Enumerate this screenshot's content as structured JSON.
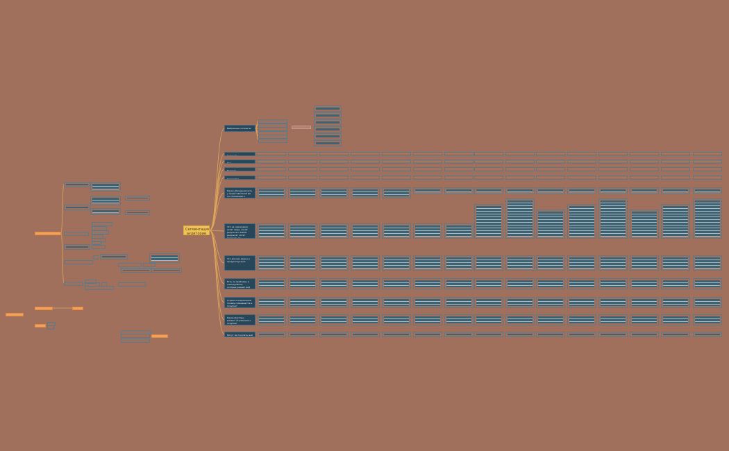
{
  "central": {
    "label": "Сегментация аудитории"
  },
  "colors": {
    "background": "#a0705c",
    "central": "#f0c35a",
    "branch": "#27465a",
    "cell": "#3f6273",
    "link": "#e0a85a",
    "side_node": "#f2a25e"
  },
  "branches": [
    {
      "label": "Выбранные сегменты"
    },
    {
      "label": "Сегменты"
    },
    {
      "label": "Пол"
    },
    {
      "label": "Возраст"
    },
    {
      "label": "География"
    },
    {
      "label": "Какие убеждения есть у представителей ЦА по отношению к нашей теме"
    },
    {
      "label": "Что на самом деле хотят люди, какой результат? Какой результат хотят получить от использования моего продукта"
    },
    {
      "label": "Что для них важно в продукте/услуге"
    },
    {
      "label": "Есть ли проблемы в жизни/работе, которые решает мой продукт?"
    },
    {
      "label": "Страхи и возражения, почему сомневаются в покупке?"
    },
    {
      "label": "Какие факторы влияют на решение о покупке?"
    },
    {
      "label": "Могут ли покупать мой товар/услугу повторно?"
    }
  ]
}
